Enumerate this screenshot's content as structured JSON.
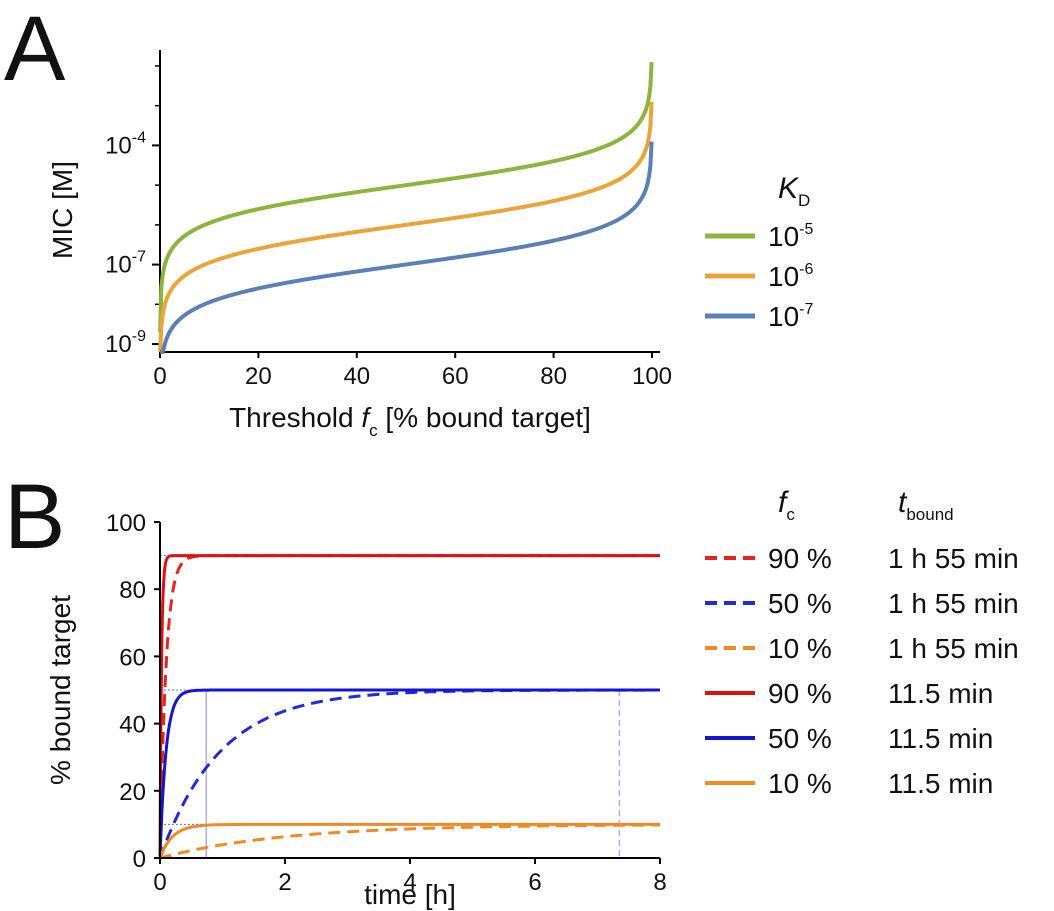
{
  "panel_letters": {
    "a": "A",
    "b": "B"
  },
  "chart_data": [
    {
      "panel": "A",
      "type": "line",
      "xlabel": {
        "main": "Threshold ",
        "italic": "f",
        "sub": "c",
        "rest": " [% bound target]"
      },
      "ylabel": "MIC [M]",
      "y_scale": "log",
      "xlim": [
        0,
        100
      ],
      "ylim_log10": [
        -9.2,
        -1.8
      ],
      "x_ticks": [
        "0",
        "20",
        "40",
        "60",
        "80",
        "100"
      ],
      "y_ticks": [
        {
          "base": "10",
          "exp": "-4",
          "log10": -4
        },
        {
          "base": "10",
          "exp": "-7",
          "log10": -7
        },
        {
          "base": "10",
          "exp": "-9",
          "log10": -9
        }
      ],
      "legend": {
        "title_italic": "K",
        "title_sub": "D",
        "placement": "right"
      },
      "series": [
        {
          "name_base": "10",
          "name_exp": "-5",
          "kd": 1e-05,
          "color": "#8db43d"
        },
        {
          "name_base": "10",
          "name_exp": "-6",
          "kd": 1e-06,
          "color": "#e9a43a"
        },
        {
          "name_base": "10",
          "name_exp": "-7",
          "kd": 1e-07,
          "color": "#5b80b8"
        }
      ]
    },
    {
      "panel": "B",
      "type": "line",
      "xlabel": "time [h]",
      "ylabel": "% bound target",
      "xlim": [
        0,
        8
      ],
      "ylim": [
        0,
        100
      ],
      "x_ticks": [
        "0",
        "2",
        "4",
        "6",
        "8"
      ],
      "y_ticks": [
        "0",
        "20",
        "40",
        "60",
        "80",
        "100"
      ],
      "legend": {
        "col1_italic": "f",
        "col1_sub": "c",
        "col2_italic": "t",
        "col2_sub": "bound",
        "placement": "right"
      },
      "series": [
        {
          "fc": "90 %",
          "tbound": "1 h 55 min",
          "plateau": 90,
          "t_half_h": 0.0667,
          "style": "dashed",
          "color": "#e8231f"
        },
        {
          "fc": "50 %",
          "tbound": "1 h 55 min",
          "plateau": 50,
          "t_half_h": 0.665,
          "style": "dashed",
          "color": "#1f2bd8"
        },
        {
          "fc": "10 %",
          "tbound": "1 h 55 min",
          "plateau": 10,
          "t_half_h": 1.38,
          "style": "dashed",
          "color": "#f08a24"
        },
        {
          "fc": "90 %",
          "tbound": "11.5 min",
          "plateau": 90,
          "t_half_h": 0.0167,
          "style": "solid",
          "color": "#e01010"
        },
        {
          "fc": "50 %",
          "tbound": "11.5 min",
          "plateau": 50,
          "t_half_h": 0.0665,
          "style": "solid",
          "color": "#1414d4"
        },
        {
          "fc": "10 %",
          "tbound": "11.5 min",
          "plateau": 10,
          "t_half_h": 0.138,
          "style": "solid",
          "color": "#f08a24"
        }
      ],
      "reference_lines": {
        "hlines": [
          90,
          50,
          10
        ],
        "vlines_h": [
          0.74,
          7.35
        ]
      }
    }
  ]
}
